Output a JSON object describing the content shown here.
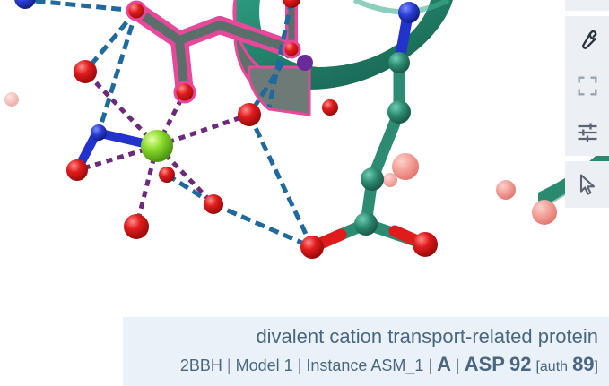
{
  "viewer": {
    "scene": {
      "ribbon_color": "#1f7a63",
      "ribbon_highlight": "#e8479a",
      "oxygen_color": "#e01b1b",
      "nitrogen_color": "#2233cc",
      "carbon_color": "#2e8b73",
      "metal_ion_color": "#7bd62a",
      "interaction_color_metal": "#6b2a7a",
      "interaction_color_hbond": "#1e6a9e"
    },
    "toolbar": [
      {
        "icon": "wrench-icon",
        "name": "settings-button"
      },
      {
        "icon": "expand-icon",
        "name": "fullscreen-button"
      },
      {
        "icon": "sliders-icon",
        "name": "controls-button"
      },
      {
        "icon": "pointer-icon",
        "name": "selection-mode-button"
      }
    ],
    "info": {
      "title": "divalent cation transport-related protein",
      "entry_id": "2BBH",
      "model": "Model 1",
      "instance": "Instance ASM_1",
      "chain": "A",
      "residue_name": "ASP",
      "residue_number": "92",
      "auth_prefix": "[auth",
      "auth_number": "89",
      "auth_suffix": "]"
    }
  }
}
